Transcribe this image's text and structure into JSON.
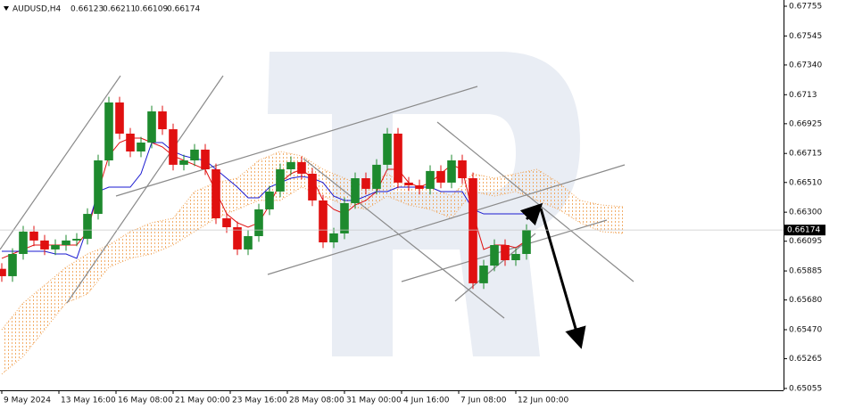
{
  "chart_data": {
    "type": "candlestick",
    "symbol": "AUDUSD,H4",
    "header_ohlc": [
      0.66123,
      0.66211,
      0.66109,
      0.66174
    ],
    "current_price": 0.66174,
    "up_color": "#1e8a2e",
    "down_color": "#e01010",
    "xlim": [
      -0.5,
      219
    ],
    "ylim": [
      0.65042,
      0.67799
    ],
    "xticks": [
      {
        "value": 0,
        "label": "9 May 2024"
      },
      {
        "value": 16,
        "label": "13 May 16:00"
      },
      {
        "value": 32,
        "label": "16 May 08:00"
      },
      {
        "value": 48,
        "label": "21 May 00:00"
      },
      {
        "value": 64,
        "label": "23 May 16:00"
      },
      {
        "value": 80,
        "label": "28 May 08:00"
      },
      {
        "value": 96,
        "label": "31 May 00:00"
      },
      {
        "value": 112,
        "label": "4 Jun 16:00"
      },
      {
        "value": 128,
        "label": "7 Jun 08:00"
      },
      {
        "value": 144,
        "label": "12 Jun 00:00"
      }
    ],
    "yticks": [
      0.67755,
      0.67545,
      {
        "value": 0.6734,
        "label": "0.67340"
      },
      0.6713,
      0.66925,
      0.66715,
      {
        "value": 0.6651,
        "label": "0.66510"
      },
      {
        "value": 0.663,
        "label": "0.66300"
      },
      0.66095,
      0.65885,
      {
        "value": 0.6568,
        "label": "0.65680"
      },
      {
        "value": 0.6547,
        "label": "0.65470"
      },
      0.65265,
      0.65055
    ],
    "x": [
      0,
      3,
      6,
      9,
      12,
      15,
      18,
      21,
      24,
      27,
      30,
      33,
      36,
      39,
      42,
      45,
      48,
      51,
      54,
      57,
      60,
      63,
      66,
      69,
      72,
      75,
      78,
      81,
      84,
      87,
      90,
      93,
      96,
      99,
      102,
      105,
      108,
      111,
      114,
      117,
      120,
      123,
      126,
      129,
      132,
      135,
      138,
      141,
      144,
      147
    ],
    "open": [
      0.659,
      0.65848,
      0.66005,
      0.66163,
      0.661,
      0.66037,
      0.66068,
      0.661,
      0.66112,
      0.66288,
      0.66666,
      0.67075,
      0.66855,
      0.66729,
      0.66792,
      0.67012,
      0.66886,
      0.66635,
      0.66666,
      0.66742,
      0.66603,
      0.66257,
      0.66194,
      0.66037,
      0.66131,
      0.6632,
      0.66446,
      0.66603,
      0.66654,
      0.66572,
      0.66383,
      0.66087,
      0.6615,
      0.66364,
      0.6654,
      0.66465,
      0.66635,
      0.66855,
      0.66509,
      0.6649,
      0.66465,
      0.66591,
      0.66509,
      0.66666,
      0.6654,
      0.65798,
      0.65923,
      0.66068,
      0.65961,
      0.66005
    ],
    "high": [
      0.6594,
      0.66045,
      0.66203,
      0.66203,
      0.6614,
      0.66108,
      0.6614,
      0.66152,
      0.66328,
      0.66706,
      0.67115,
      0.67115,
      0.66895,
      0.66832,
      0.67052,
      0.67052,
      0.66926,
      0.66706,
      0.66782,
      0.66782,
      0.66643,
      0.66297,
      0.66234,
      0.66171,
      0.6636,
      0.66486,
      0.66643,
      0.66694,
      0.66694,
      0.66612,
      0.66423,
      0.6619,
      0.66404,
      0.6658,
      0.6658,
      0.66675,
      0.66895,
      0.66895,
      0.66549,
      0.6653,
      0.66631,
      0.66631,
      0.66706,
      0.66706,
      0.6658,
      0.65963,
      0.66108,
      0.66108,
      0.66045,
      0.66214
    ],
    "low": [
      0.65808,
      0.65808,
      0.65965,
      0.6606,
      0.65997,
      0.65997,
      0.66028,
      0.6606,
      0.66072,
      0.66248,
      0.66626,
      0.66815,
      0.66689,
      0.66689,
      0.66752,
      0.66846,
      0.66595,
      0.66595,
      0.66626,
      0.66563,
      0.66217,
      0.66154,
      0.65997,
      0.65997,
      0.66091,
      0.6628,
      0.66406,
      0.66563,
      0.66532,
      0.66343,
      0.66047,
      0.66047,
      0.6611,
      0.66324,
      0.66425,
      0.66425,
      0.66595,
      0.66469,
      0.6645,
      0.66425,
      0.66425,
      0.66469,
      0.66469,
      0.665,
      0.65758,
      0.65758,
      0.65883,
      0.65921,
      0.65921,
      0.65965
    ],
    "close": [
      0.65848,
      0.66005,
      0.66163,
      0.661,
      0.66037,
      0.66068,
      0.661,
      0.66112,
      0.66288,
      0.66666,
      0.67075,
      0.66855,
      0.66729,
      0.66792,
      0.67012,
      0.66886,
      0.66635,
      0.66666,
      0.66742,
      0.66603,
      0.66257,
      0.66194,
      0.66037,
      0.66131,
      0.6632,
      0.66446,
      0.66603,
      0.66654,
      0.66572,
      0.66383,
      0.66087,
      0.6615,
      0.66364,
      0.6654,
      0.66465,
      0.66635,
      0.66855,
      0.66509,
      0.6649,
      0.66465,
      0.66591,
      0.66509,
      0.66666,
      0.6654,
      0.65798,
      0.65923,
      0.66068,
      0.65961,
      0.66005,
      0.66174
    ],
    "lines": [
      {
        "color": "#e01010",
        "values": [
          0.65974,
          0.66005,
          0.66037,
          0.66068,
          0.66068,
          0.66068,
          0.66068,
          0.66068,
          0.66163,
          0.66446,
          0.66698,
          0.66792,
          0.66823,
          0.66823,
          0.66792,
          0.66761,
          0.66698,
          0.66666,
          0.66635,
          0.66603,
          0.66446,
          0.66288,
          0.66226,
          0.66194,
          0.66226,
          0.66351,
          0.66509,
          0.66572,
          0.66603,
          0.6654,
          0.66383,
          0.6632,
          0.66288,
          0.66351,
          0.66383,
          0.66446,
          0.66603,
          0.66603,
          0.66509,
          0.66477,
          0.66509,
          0.66572,
          0.66635,
          0.66603,
          0.66288,
          0.66037,
          0.66068,
          0.66068,
          0.66049,
          0.661
        ]
      },
      {
        "color": "#1a1ad0",
        "values": [
          0.66024,
          0.66024,
          0.66024,
          0.66024,
          0.66024,
          0.66005,
          0.66005,
          0.65974,
          0.66194,
          0.66446,
          0.66477,
          0.66477,
          0.66477,
          0.66572,
          0.66792,
          0.66792,
          0.66729,
          0.66698,
          0.66679,
          0.66666,
          0.66603,
          0.6654,
          0.66477,
          0.66402,
          0.66402,
          0.66477,
          0.66509,
          0.6654,
          0.66553,
          0.6654,
          0.66509,
          0.66414,
          0.66383,
          0.66383,
          0.66414,
          0.66446,
          0.66446,
          0.66477,
          0.66477,
          0.66477,
          0.66477,
          0.66446,
          0.66446,
          0.66446,
          0.6632,
          0.66288,
          0.66288,
          0.66288,
          0.66288,
          0.66288
        ]
      }
    ],
    "cloud": {
      "color": "#f0a050",
      "x": [
        0,
        6,
        12,
        18,
        24,
        30,
        36,
        42,
        48,
        54,
        60,
        66,
        72,
        78,
        84,
        90,
        96,
        102,
        108,
        114,
        120,
        126,
        132,
        138,
        144,
        150,
        156,
        162,
        168,
        174
      ],
      "upper": [
        0.6547,
        0.65659,
        0.65785,
        0.65911,
        0.66005,
        0.66068,
        0.66163,
        0.66226,
        0.66257,
        0.66446,
        0.66509,
        0.6654,
        0.66666,
        0.66729,
        0.66698,
        0.66603,
        0.6654,
        0.66477,
        0.66572,
        0.66477,
        0.66477,
        0.66414,
        0.66572,
        0.6654,
        0.66572,
        0.66603,
        0.66509,
        0.66383,
        0.66351,
        0.66339
      ],
      "lower": [
        0.65156,
        0.65281,
        0.6547,
        0.65659,
        0.65722,
        0.65911,
        0.65974,
        0.66005,
        0.66068,
        0.66163,
        0.66257,
        0.6632,
        0.66383,
        0.66383,
        0.66477,
        0.66414,
        0.66351,
        0.6632,
        0.66414,
        0.66351,
        0.6632,
        0.66257,
        0.66446,
        0.66414,
        0.66446,
        0.66383,
        0.6632,
        0.66226,
        0.66163,
        0.6615
      ]
    }
  }
}
